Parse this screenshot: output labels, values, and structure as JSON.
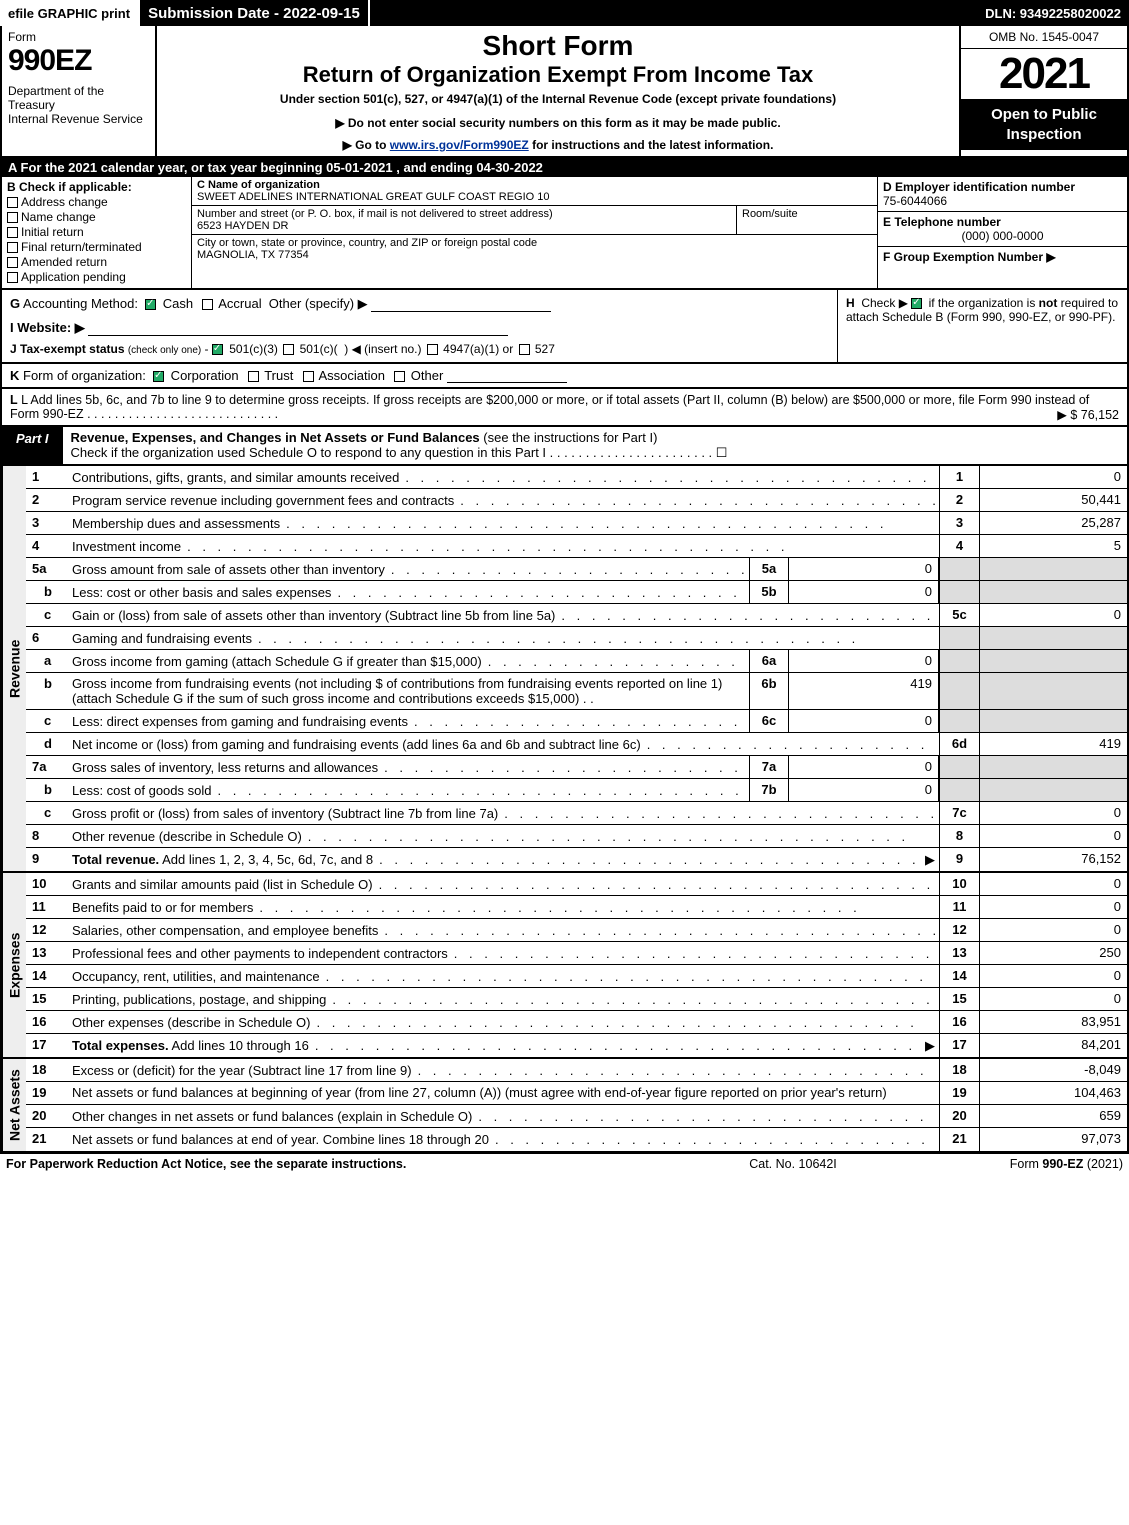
{
  "colors": {
    "black": "#000000",
    "white": "#ffffff",
    "grey_fill": "#dddddd",
    "link": "#003399",
    "check_green": "#22aa66"
  },
  "top": {
    "efile": "efile GRAPHIC print",
    "submission": "Submission Date - 2022-09-15",
    "dln": "DLN: 93492258020022"
  },
  "header": {
    "form_label": "Form",
    "form_number": "990EZ",
    "dept": "Department of the Treasury\nInternal Revenue Service",
    "short_form": "Short Form",
    "title": "Return of Organization Exempt From Income Tax",
    "sub1": "Under section 501(c), 527, or 4947(a)(1) of the Internal Revenue Code (except private foundations)",
    "sub2": "▶ Do not enter social security numbers on this form as it may be made public.",
    "sub3_pre": "▶ Go to ",
    "sub3_link": "www.irs.gov/Form990EZ",
    "sub3_post": " for instructions and the latest information.",
    "omb": "OMB No. 1545-0047",
    "year": "2021",
    "open": "Open to Public Inspection"
  },
  "line_a": "A  For the 2021 calendar year, or tax year beginning 05-01-2021 , and ending 04-30-2022",
  "b": {
    "hdr": "B  Check if applicable:",
    "opts": [
      "Address change",
      "Name change",
      "Initial return",
      "Final return/terminated",
      "Amended return",
      "Application pending"
    ]
  },
  "c": {
    "name_lbl": "C Name of organization",
    "name": "SWEET ADELINES INTERNATIONAL GREAT GULF COAST REGIO 10",
    "addr_lbl": "Number and street (or P. O. box, if mail is not delivered to street address)",
    "addr": "6523 HAYDEN DR",
    "suite_lbl": "Room/suite",
    "city_lbl": "City or town, state or province, country, and ZIP or foreign postal code",
    "city": "MAGNOLIA, TX  77354"
  },
  "d": {
    "lbl": "D Employer identification number",
    "val": "75-6044066"
  },
  "e": {
    "lbl": "E Telephone number",
    "val": "(000) 000-0000"
  },
  "f": {
    "lbl": "F Group Exemption Number  ▶"
  },
  "g": "G Accounting Method:   ☑ Cash   ☐ Accrual   Other (specify) ▶",
  "h": "H  Check ▶ ☑ if the organization is not required to attach Schedule B (Form 990, 990-EZ, or 990-PF).",
  "i": "I Website: ▶",
  "j": "J Tax-exempt status (check only one) - ☑ 501(c)(3)  ☐ 501(c)(  ) ◀ (insert no.)  ☐ 4947(a)(1) or  ☐ 527",
  "k": "K Form of organization:   ☑ Corporation   ☐ Trust   ☐ Association   ☐ Other",
  "l": {
    "text": "L Add lines 5b, 6c, and 7b to line 9 to determine gross receipts. If gross receipts are $200,000 or more, or if total assets (Part II, column (B) below) are $500,000 or more, file Form 990 instead of Form 990-EZ  .  .  .  .  .  .  .  .  .  .  .  .  .  .  .  .  .  .  .  .  .  .  .  .  .  .  .  .",
    "val": "▶ $ 76,152"
  },
  "part1": {
    "tag": "Part I",
    "title": "Revenue, Expenses, and Changes in Net Assets or Fund Balances",
    "sub": " (see the instructions for Part I)",
    "check_line": "Check if the organization used Schedule O to respond to any question in this Part I  .  .  .  .  .  .  .  .  .  .  .  .  .  .  .  .  .  .  .  .  .  .  .  ☐"
  },
  "sections": {
    "revenue_label": "Revenue",
    "expenses_label": "Expenses",
    "netassets_label": "Net Assets"
  },
  "revenue": [
    {
      "n": "1",
      "desc": "Contributions, gifts, grants, and similar amounts received",
      "rn": "1",
      "rv": "0"
    },
    {
      "n": "2",
      "desc": "Program service revenue including government fees and contracts",
      "rn": "2",
      "rv": "50,441"
    },
    {
      "n": "3",
      "desc": "Membership dues and assessments",
      "rn": "3",
      "rv": "25,287"
    },
    {
      "n": "4",
      "desc": "Investment income",
      "rn": "4",
      "rv": "5"
    },
    {
      "n": "5a",
      "desc": "Gross amount from sale of assets other than inventory",
      "in": "5a",
      "iv": "0",
      "grey": true
    },
    {
      "n": "b",
      "sub": true,
      "desc": "Less: cost or other basis and sales expenses",
      "in": "5b",
      "iv": "0",
      "grey": true
    },
    {
      "n": "c",
      "sub": true,
      "desc": "Gain or (loss) from sale of assets other than inventory (Subtract line 5b from line 5a)",
      "rn": "5c",
      "rv": "0"
    },
    {
      "n": "6",
      "desc": "Gaming and fundraising events",
      "noval": true
    },
    {
      "n": "a",
      "sub": true,
      "desc": "Gross income from gaming (attach Schedule G if greater than $15,000)",
      "in": "6a",
      "iv": "0",
      "grey": true
    },
    {
      "n": "b",
      "sub": true,
      "multi": true,
      "desc": "Gross income from fundraising events (not including $            of contributions from fundraising events reported on line 1) (attach Schedule G if the sum of such gross income and contributions exceeds $15,000)   .  .",
      "in": "6b",
      "iv": "419",
      "grey": true
    },
    {
      "n": "c",
      "sub": true,
      "desc": "Less: direct expenses from gaming and fundraising events",
      "in": "6c",
      "iv": "0",
      "grey": true
    },
    {
      "n": "d",
      "sub": true,
      "desc": "Net income or (loss) from gaming and fundraising events (add lines 6a and 6b and subtract line 6c)",
      "rn": "6d",
      "rv": "419"
    },
    {
      "n": "7a",
      "desc": "Gross sales of inventory, less returns and allowances",
      "in": "7a",
      "iv": "0",
      "grey": true
    },
    {
      "n": "b",
      "sub": true,
      "desc": "Less: cost of goods sold",
      "in": "7b",
      "iv": "0",
      "grey": true
    },
    {
      "n": "c",
      "sub": true,
      "desc": "Gross profit or (loss) from sales of inventory (Subtract line 7b from line 7a)",
      "rn": "7c",
      "rv": "0"
    },
    {
      "n": "8",
      "desc": "Other revenue (describe in Schedule O)",
      "rn": "8",
      "rv": "0"
    },
    {
      "n": "9",
      "desc": "Total revenue. Add lines 1, 2, 3, 4, 5c, 6d, 7c, and 8",
      "bold": true,
      "arrow": true,
      "rn": "9",
      "rv": "76,152"
    }
  ],
  "expenses": [
    {
      "n": "10",
      "desc": "Grants and similar amounts paid (list in Schedule O)",
      "rn": "10",
      "rv": "0"
    },
    {
      "n": "11",
      "desc": "Benefits paid to or for members",
      "rn": "11",
      "rv": "0"
    },
    {
      "n": "12",
      "desc": "Salaries, other compensation, and employee benefits",
      "rn": "12",
      "rv": "0"
    },
    {
      "n": "13",
      "desc": "Professional fees and other payments to independent contractors",
      "rn": "13",
      "rv": "250"
    },
    {
      "n": "14",
      "desc": "Occupancy, rent, utilities, and maintenance",
      "rn": "14",
      "rv": "0"
    },
    {
      "n": "15",
      "desc": "Printing, publications, postage, and shipping",
      "rn": "15",
      "rv": "0"
    },
    {
      "n": "16",
      "desc": "Other expenses (describe in Schedule O)",
      "rn": "16",
      "rv": "83,951"
    },
    {
      "n": "17",
      "desc": "Total expenses. Add lines 10 through 16",
      "bold": true,
      "arrow": true,
      "rn": "17",
      "rv": "84,201"
    }
  ],
  "netassets": [
    {
      "n": "18",
      "desc": "Excess or (deficit) for the year (Subtract line 17 from line 9)",
      "rn": "18",
      "rv": "-8,049"
    },
    {
      "n": "19",
      "multi": true,
      "desc": "Net assets or fund balances at beginning of year (from line 27, column (A)) (must agree with end-of-year figure reported on prior year's return)",
      "rn": "19",
      "rv": "104,463"
    },
    {
      "n": "20",
      "desc": "Other changes in net assets or fund balances (explain in Schedule O)",
      "rn": "20",
      "rv": "659"
    },
    {
      "n": "21",
      "desc": "Net assets or fund balances at end of year. Combine lines 18 through 20",
      "rn": "21",
      "rv": "97,073"
    }
  ],
  "footer": {
    "left": "For Paperwork Reduction Act Notice, see the separate instructions.",
    "center": "Cat. No. 10642I",
    "right_pre": "Form ",
    "right_bold": "990-EZ",
    "right_post": " (2021)"
  }
}
